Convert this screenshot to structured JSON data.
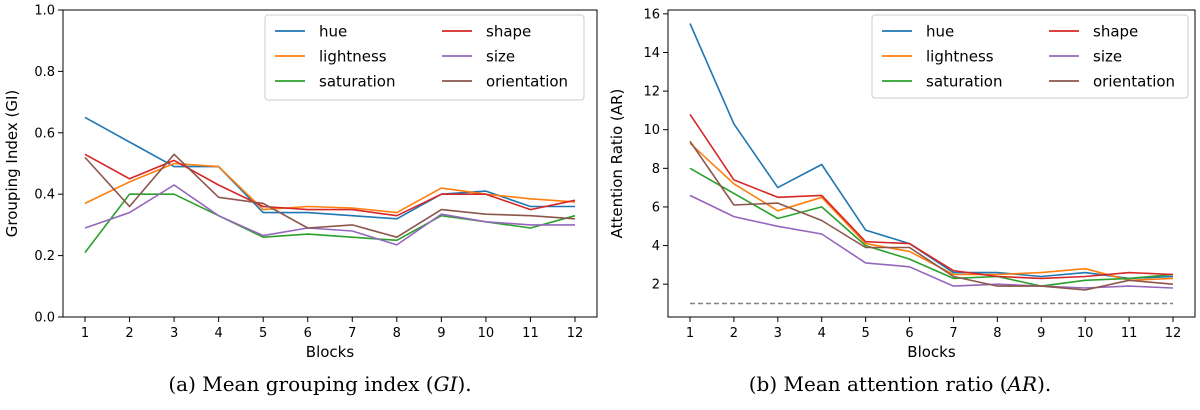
{
  "chart_data": [
    {
      "type": "line",
      "xlabel": "Blocks",
      "ylabel": "Grouping Index (GI)",
      "x": [
        1,
        2,
        3,
        4,
        5,
        6,
        7,
        8,
        9,
        10,
        11,
        12
      ],
      "xticks": [
        "1",
        "2",
        "3",
        "4",
        "5",
        "6",
        "7",
        "8",
        "9",
        "10",
        "11",
        "12"
      ],
      "ylim": [
        0.0,
        1.0
      ],
      "yticks": [
        "0.0",
        "0.2",
        "0.4",
        "0.6",
        "0.8",
        "1.0"
      ],
      "ytick_values": [
        0.0,
        0.2,
        0.4,
        0.6,
        0.8,
        1.0
      ],
      "grid": false,
      "legend_position": "top-right",
      "legend_columns": 2,
      "series": [
        {
          "name": "hue",
          "color": "#1f77b4",
          "values": [
            0.65,
            0.57,
            0.49,
            0.49,
            0.34,
            0.34,
            0.33,
            0.32,
            0.4,
            0.41,
            0.36,
            0.36
          ]
        },
        {
          "name": "lightness",
          "color": "#ff7f0e",
          "values": [
            0.37,
            0.44,
            0.5,
            0.49,
            0.35,
            0.36,
            0.355,
            0.34,
            0.42,
            0.4,
            0.385,
            0.375
          ]
        },
        {
          "name": "saturation",
          "color": "#2ca02c",
          "values": [
            0.21,
            0.4,
            0.4,
            0.33,
            0.26,
            0.27,
            0.26,
            0.25,
            0.33,
            0.31,
            0.29,
            0.33
          ]
        },
        {
          "name": "shape",
          "color": "#d62728",
          "values": [
            0.53,
            0.45,
            0.51,
            0.43,
            0.36,
            0.35,
            0.35,
            0.33,
            0.4,
            0.4,
            0.35,
            0.38
          ]
        },
        {
          "name": "size",
          "color": "#9467bd",
          "values": [
            0.29,
            0.34,
            0.43,
            0.33,
            0.265,
            0.29,
            0.28,
            0.235,
            0.335,
            0.31,
            0.3,
            0.3
          ]
        },
        {
          "name": "orientation",
          "color": "#8c564b",
          "values": [
            0.52,
            0.36,
            0.53,
            0.39,
            0.37,
            0.29,
            0.3,
            0.26,
            0.35,
            0.335,
            0.33,
            0.32
          ]
        }
      ]
    },
    {
      "type": "line",
      "xlabel": "Blocks",
      "ylabel": "Attention Ratio (AR)",
      "x": [
        1,
        2,
        3,
        4,
        5,
        6,
        7,
        8,
        9,
        10,
        11,
        12
      ],
      "xticks": [
        "1",
        "2",
        "3",
        "4",
        "5",
        "6",
        "7",
        "8",
        "9",
        "10",
        "11",
        "12"
      ],
      "ylim": [
        0.3,
        16.2
      ],
      "yticks": [
        "2",
        "4",
        "6",
        "8",
        "10",
        "12",
        "14",
        "16"
      ],
      "ytick_values": [
        2,
        4,
        6,
        8,
        10,
        12,
        14,
        16
      ],
      "grid": false,
      "legend_position": "top-right",
      "legend_columns": 2,
      "reference_line": {
        "value": 1.0,
        "style": "dashed",
        "color": "#808080"
      },
      "series": [
        {
          "name": "hue",
          "color": "#1f77b4",
          "values": [
            15.5,
            10.3,
            7.0,
            8.2,
            4.8,
            4.1,
            2.6,
            2.6,
            2.4,
            2.6,
            2.3,
            2.4
          ]
        },
        {
          "name": "lightness",
          "color": "#ff7f0e",
          "values": [
            9.3,
            7.2,
            5.8,
            6.5,
            4.1,
            3.7,
            2.5,
            2.5,
            2.6,
            2.8,
            2.2,
            2.3
          ]
        },
        {
          "name": "saturation",
          "color": "#2ca02c",
          "values": [
            8.0,
            6.7,
            5.4,
            6.0,
            4.0,
            3.3,
            2.3,
            2.4,
            1.9,
            2.2,
            2.3,
            2.5
          ]
        },
        {
          "name": "shape",
          "color": "#d62728",
          "values": [
            10.8,
            7.4,
            6.5,
            6.6,
            4.2,
            4.1,
            2.7,
            2.4,
            2.3,
            2.4,
            2.6,
            2.5
          ]
        },
        {
          "name": "size",
          "color": "#9467bd",
          "values": [
            6.6,
            5.5,
            5.0,
            4.6,
            3.1,
            2.9,
            1.9,
            2.0,
            1.9,
            1.8,
            1.9,
            1.8
          ]
        },
        {
          "name": "orientation",
          "color": "#8c564b",
          "values": [
            9.4,
            6.1,
            6.2,
            5.3,
            3.9,
            3.9,
            2.4,
            1.9,
            1.9,
            1.7,
            2.2,
            2.0
          ]
        }
      ]
    }
  ],
  "captions": {
    "a_prefix": "(a) Mean grouping index (",
    "a_symbol": "GI",
    "a_suffix": ").",
    "b_prefix": "(b) Mean attention ratio (",
    "b_symbol": "AR",
    "b_suffix": ")."
  }
}
